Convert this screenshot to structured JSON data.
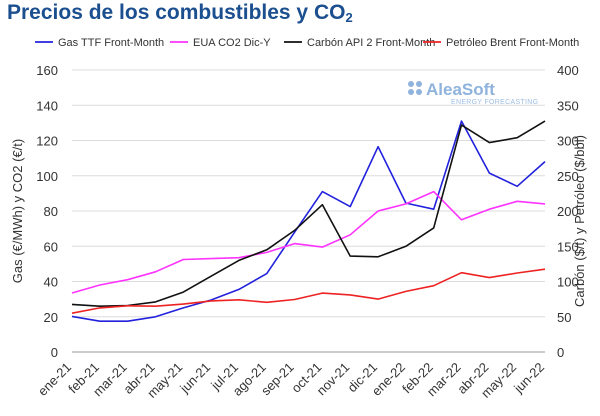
{
  "title": {
    "text": "Precios de los combustibles y CO",
    "subscript": "2"
  },
  "watermark": {
    "brand": "AleaSoft",
    "tagline": "ENERGY FORECASTING"
  },
  "chart_data": {
    "type": "line",
    "title": "Precios de los combustibles y CO2",
    "categories": [
      "ene-21",
      "feb-21",
      "mar-21",
      "abr-21",
      "may-21",
      "jun-21",
      "jul-21",
      "ago-21",
      "sep-21",
      "oct-21",
      "nov-21",
      "dic-21",
      "ene-22",
      "feb-22",
      "mar-22",
      "abr-22",
      "may-22",
      "jun-22"
    ],
    "ylabel_left": "Gas (€/MWh) y CO2 (€/t)",
    "ylabel_right": "Carbón ($/t) y Petróleo ($/bbl)",
    "ylim_left": [
      0,
      160
    ],
    "ylim_right": [
      0,
      400
    ],
    "yticks_left": [
      0,
      20,
      40,
      60,
      80,
      100,
      120,
      140,
      160
    ],
    "yticks_right": [
      0,
      50,
      100,
      150,
      200,
      250,
      300,
      350,
      400
    ],
    "grid": "horizontal",
    "legend_position": "top",
    "series": [
      {
        "name": "Gas TTF Front-Month",
        "axis": "left",
        "color": "#2222dd",
        "values": [
          20.2,
          17.5,
          17.5,
          20.0,
          25.0,
          29.5,
          35.5,
          44.5,
          68.0,
          91.0,
          82.5,
          116.5,
          84.5,
          81.0,
          131.0,
          101.5,
          94.0,
          108.0
        ]
      },
      {
        "name": "EUA CO2 Dic-Y",
        "axis": "left",
        "color": "#ff33ff",
        "values": [
          33.5,
          38.0,
          41.0,
          45.5,
          52.5,
          53.0,
          53.5,
          56.5,
          61.5,
          59.5,
          66.5,
          80.0,
          84.0,
          91.0,
          75.0,
          81.0,
          85.5,
          84.0
        ]
      },
      {
        "name": "Carbón API 2 Front-Month",
        "axis": "right",
        "color": "#111111",
        "values": [
          67.5,
          65.0,
          66.0,
          71.0,
          85.0,
          107.5,
          130.0,
          145.0,
          172.5,
          209.0,
          136.0,
          135.0,
          150.0,
          176.0,
          322.0,
          297.0,
          304.0,
          327.5
        ]
      },
      {
        "name": "Petróleo Brent Front-Month",
        "axis": "right",
        "color": "#ee2222",
        "values": [
          55.0,
          62.5,
          65.5,
          65.0,
          68.0,
          72.5,
          74.0,
          70.5,
          74.5,
          83.5,
          81.0,
          75.0,
          86.0,
          94.0,
          112.5,
          105.5,
          112.0,
          117.5
        ]
      }
    ]
  }
}
